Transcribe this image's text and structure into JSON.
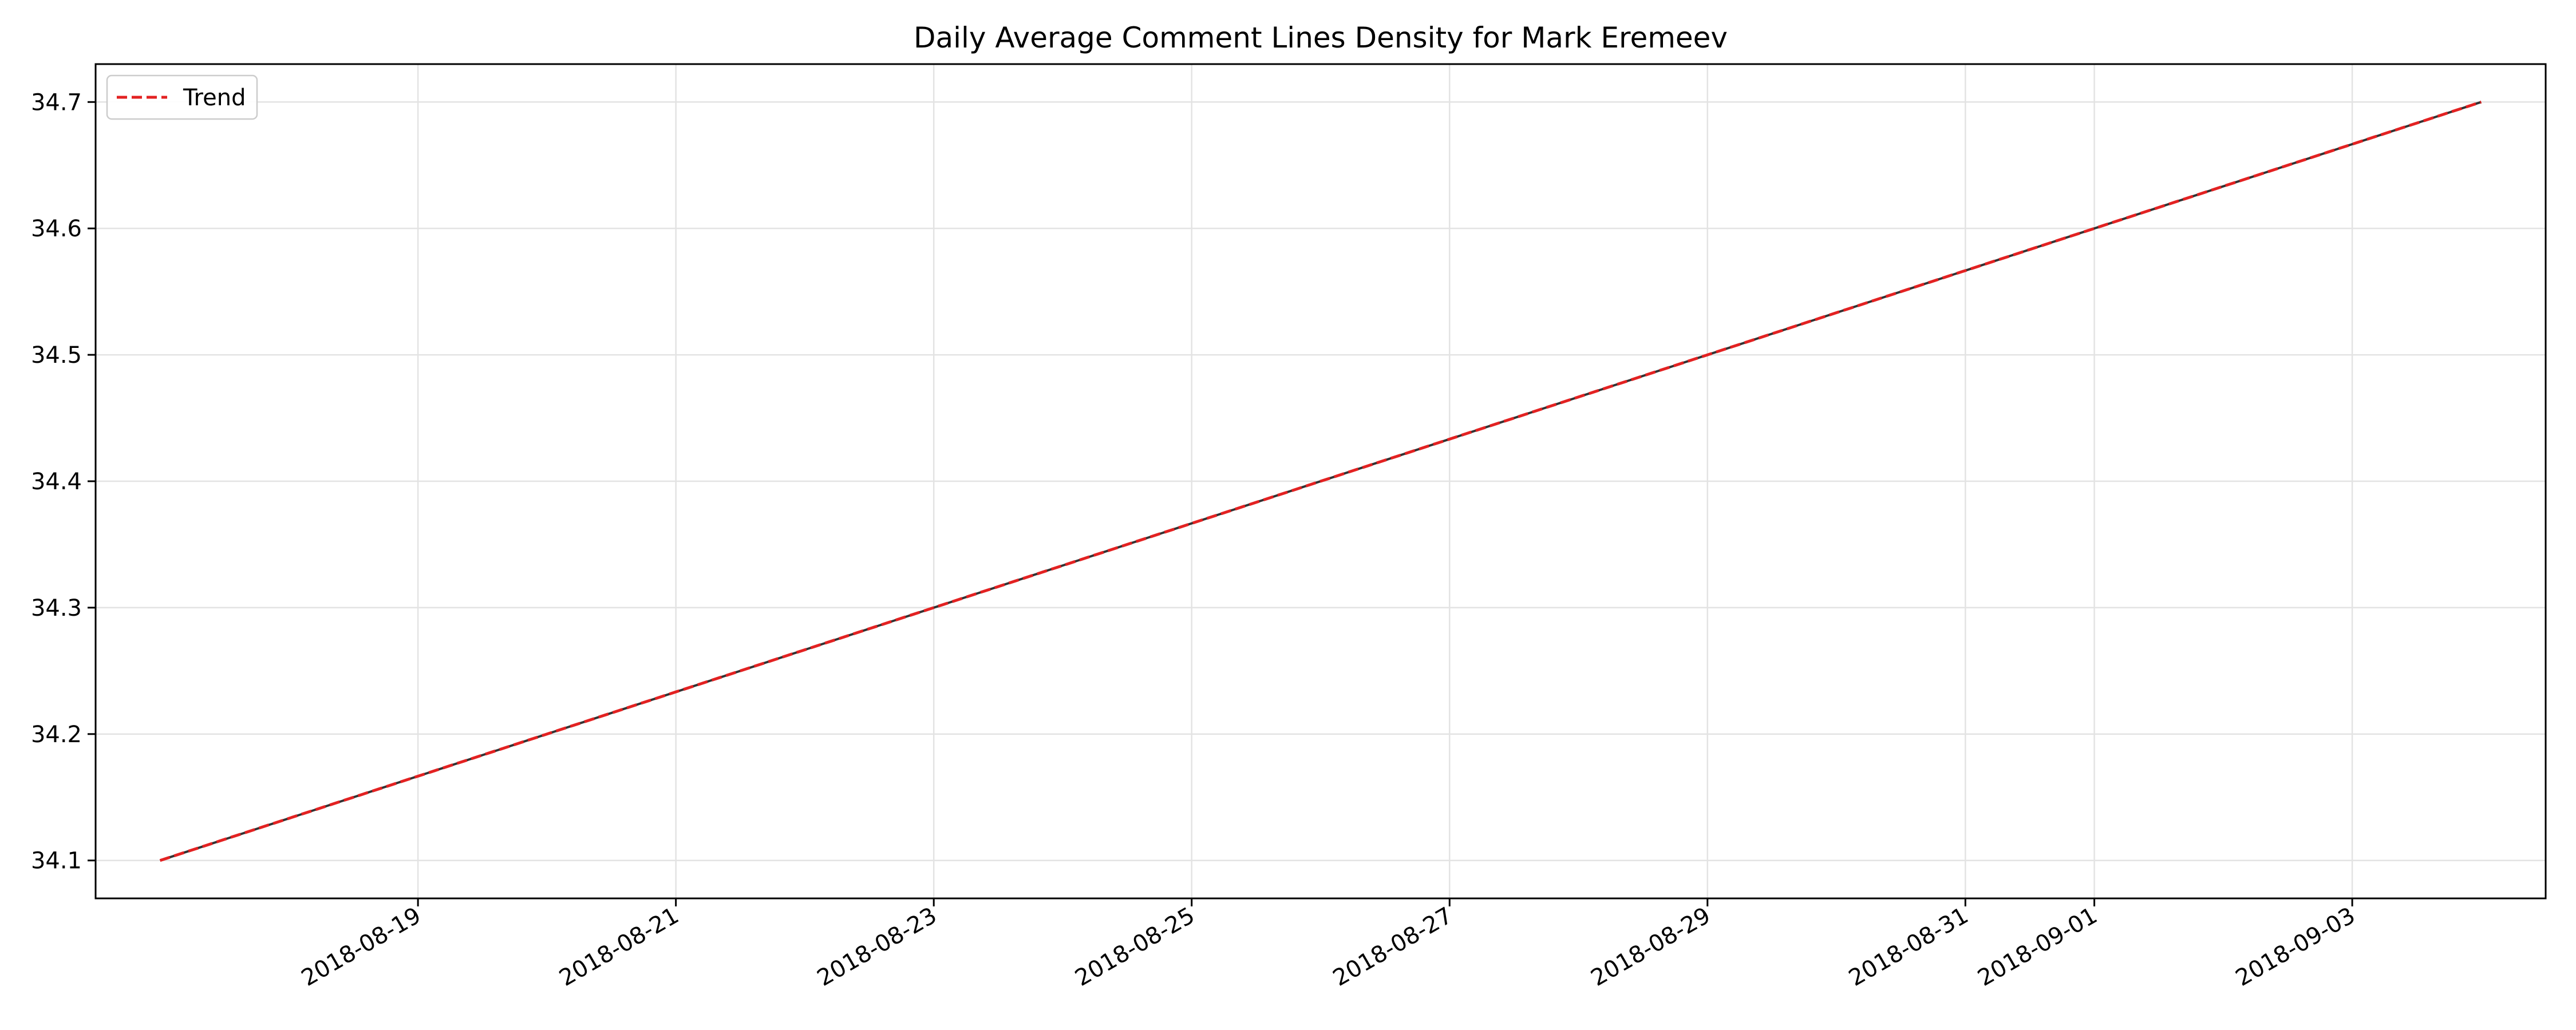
{
  "chart_data": {
    "type": "line",
    "title": "Daily Average Comment Lines Density for Mark Eremeev",
    "xlabel": "",
    "ylabel": "",
    "x_range": [
      "2018-08-17",
      "2018-09-04"
    ],
    "ylim": [
      34.07,
      34.73
    ],
    "grid": true,
    "legend_position": "top-left",
    "x_ticks": [
      "2018-08-19",
      "2018-08-21",
      "2018-08-23",
      "2018-08-25",
      "2018-08-27",
      "2018-08-29",
      "2018-08-31",
      "2018-09-01",
      "2018-09-03"
    ],
    "y_ticks": [
      34.1,
      34.2,
      34.3,
      34.4,
      34.5,
      34.6,
      34.7
    ],
    "series": [
      {
        "values": [
          {
            "x": "2018-08-17",
            "y": 34.1
          },
          {
            "x": "2018-09-04",
            "y": 34.7
          }
        ],
        "color": "#333333"
      },
      {
        "name": "Trend",
        "style": "dashed",
        "color": "#e32222",
        "values": [
          {
            "x": "2018-08-17",
            "y": 34.1
          },
          {
            "x": "2018-09-04",
            "y": 34.7
          }
        ]
      }
    ]
  }
}
